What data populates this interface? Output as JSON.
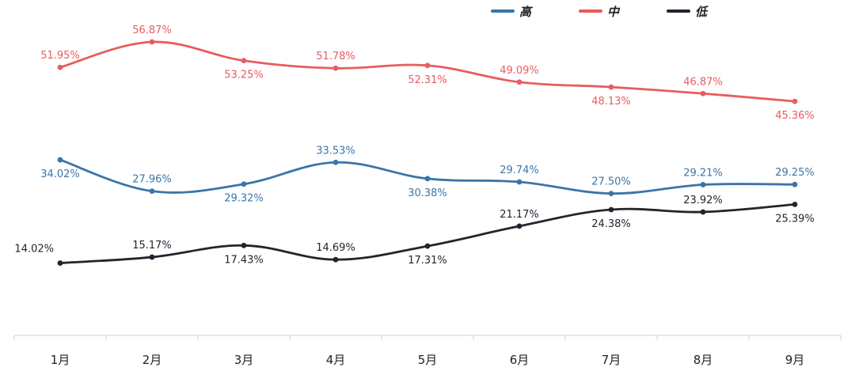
{
  "chart_data": {
    "type": "line",
    "categories": [
      "1月",
      "2月",
      "3月",
      "4月",
      "5月",
      "6月",
      "7月",
      "8月",
      "9月"
    ],
    "ylim": [
      0,
      65
    ],
    "grid": false,
    "legend_position": "top-right",
    "series": [
      {
        "name": "高",
        "color": "#3a75a9",
        "values": [
          34.02,
          27.96,
          29.32,
          33.53,
          30.38,
          29.74,
          27.5,
          29.21,
          29.25
        ],
        "labels": [
          "34.02%",
          "27.96%",
          "29.32%",
          "33.53%",
          "30.38%",
          "29.74%",
          "27.50%",
          "29.21%",
          "29.25%"
        ],
        "label_pos": [
          "below",
          "above",
          "below",
          "above",
          "below",
          "above",
          "above",
          "above",
          "above"
        ]
      },
      {
        "name": "中",
        "color": "#e85c60",
        "values": [
          51.95,
          56.87,
          53.25,
          51.78,
          52.31,
          49.09,
          48.13,
          46.87,
          45.36
        ],
        "labels": [
          "51.95%",
          "56.87%",
          "53.25%",
          "51.78%",
          "52.31%",
          "49.09%",
          "48.13%",
          "46.87%",
          "45.36%"
        ],
        "label_pos": [
          "above",
          "above",
          "below",
          "above",
          "below",
          "above",
          "below",
          "above",
          "below"
        ]
      },
      {
        "name": "低",
        "color": "#22252e",
        "values": [
          14.02,
          15.17,
          17.43,
          14.69,
          17.31,
          21.17,
          24.38,
          23.92,
          25.39
        ],
        "labels": [
          "14.02%",
          "15.17%",
          "17.43%",
          "14.69%",
          "17.31%",
          "21.17%",
          "24.38%",
          "23.92%",
          "25.39%"
        ],
        "label_pos": [
          "left",
          "above",
          "below",
          "above",
          "below",
          "above",
          "below",
          "above",
          "below"
        ]
      }
    ]
  }
}
